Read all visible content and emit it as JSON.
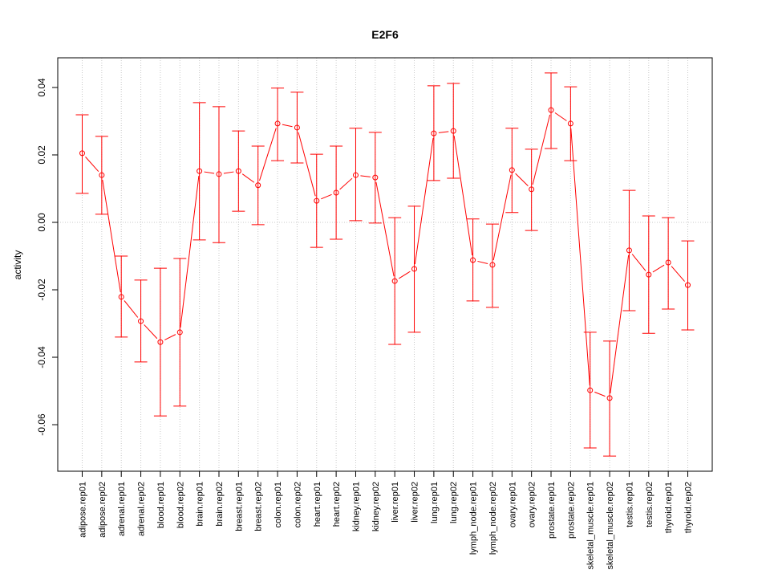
{
  "chart_data": {
    "type": "line",
    "title": "E2F6",
    "xlabel": "",
    "ylabel": "activity",
    "ylim": [
      -0.0738,
      0.0488
    ],
    "yticks": [
      -0.06,
      -0.04,
      -0.02,
      0.0,
      0.02,
      0.04
    ],
    "ytick_labels": [
      "-0.06",
      "-0.04",
      "-0.02",
      "0.00",
      "0.02",
      "0.04"
    ],
    "grid": "dotted vertical at each category, horizontal at 0",
    "color": "#ff0000",
    "categories": [
      "adipose.rep01",
      "adipose.rep02",
      "adrenal.rep01",
      "adrenal.rep02",
      "blood.rep01",
      "blood.rep02",
      "brain.rep01",
      "brain.rep02",
      "breast.rep01",
      "breast.rep02",
      "colon.rep01",
      "colon.rep02",
      "heart.rep01",
      "heart.rep02",
      "kidney.rep01",
      "kidney.rep02",
      "liver.rep01",
      "liver.rep02",
      "lung.rep01",
      "lung.rep02",
      "lymph_node.rep01",
      "lymph_node.rep02",
      "ovary.rep01",
      "ovary.rep02",
      "prostate.rep01",
      "prostate.rep02",
      "skeletal_muscle.rep01",
      "skeletal_muscle.rep02",
      "testis.rep01",
      "testis.rep02",
      "thyroid.rep01",
      "thyroid.rep02"
    ],
    "values": [
      0.0205,
      0.014,
      -0.0221,
      -0.0293,
      -0.0355,
      -0.0326,
      0.0152,
      0.0143,
      0.0152,
      0.011,
      0.0293,
      0.0281,
      0.0064,
      0.0088,
      0.014,
      0.0133,
      -0.0174,
      -0.0138,
      0.0264,
      0.0271,
      -0.0112,
      -0.0126,
      0.0155,
      0.0098,
      0.0333,
      0.0293,
      -0.0498,
      -0.0521,
      -0.0083,
      -0.0155,
      -0.0119,
      -0.0186
    ],
    "upper": [
      0.0319,
      0.0255,
      -0.01,
      -0.0171,
      -0.0136,
      -0.0107,
      0.0355,
      0.0343,
      0.0271,
      0.0226,
      0.0398,
      0.0386,
      0.0202,
      0.0226,
      0.0279,
      0.0267,
      0.0014,
      0.0048,
      0.0405,
      0.0412,
      0.001,
      -0.0005,
      0.0279,
      0.0217,
      0.0443,
      0.0402,
      -0.0326,
      -0.0352,
      0.0095,
      0.0019,
      0.0014,
      -0.0055
    ],
    "lower": [
      0.0086,
      0.0024,
      -0.034,
      -0.0414,
      -0.0574,
      -0.0545,
      -0.0052,
      -0.006,
      0.0033,
      -0.0007,
      0.0183,
      0.0176,
      -0.0074,
      -0.005,
      0.0005,
      -0.0002,
      -0.0362,
      -0.0326,
      0.0124,
      0.0131,
      -0.0233,
      -0.0252,
      0.0029,
      -0.0024,
      0.0219,
      0.0183,
      -0.0669,
      -0.0693,
      -0.0262,
      -0.0329,
      -0.0257,
      -0.0319
    ]
  }
}
